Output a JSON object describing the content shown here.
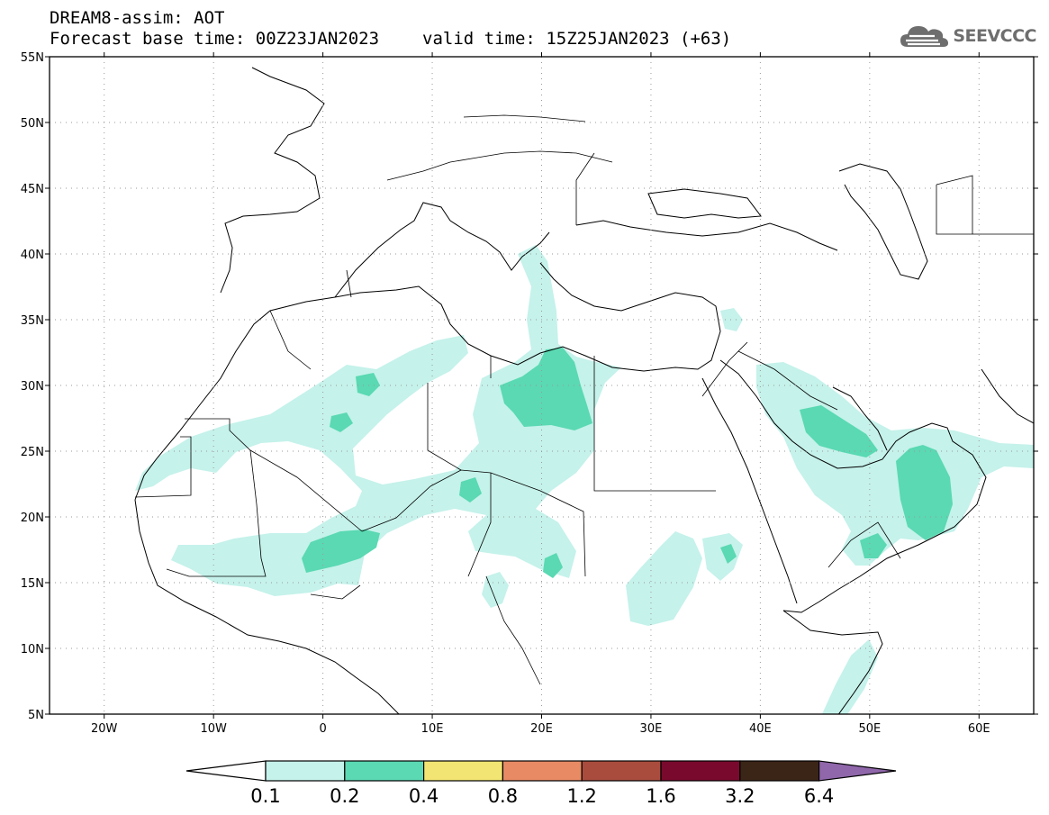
{
  "title": {
    "line1": "DREAM8-assim: AOT",
    "base_time": "Forecast base time: 00Z23JAN2023",
    "valid_time": "valid time: 15Z25JAN2023 (+63)"
  },
  "logo": {
    "name": "cloud-icon",
    "text": "SEEVCCC"
  },
  "map": {
    "lon_range": [
      -25,
      65
    ],
    "lat_range": [
      5,
      55
    ],
    "lat_labels": [
      "5N",
      "10N",
      "15N",
      "20N",
      "25N",
      "30N",
      "35N",
      "40N",
      "45N",
      "50N",
      "55N"
    ],
    "lon_labels": [
      "20W",
      "10W",
      "0",
      "10E",
      "20E",
      "30E",
      "40E",
      "50E",
      "60E"
    ]
  },
  "colorbar": {
    "levels": [
      "0.1",
      "0.2",
      "0.4",
      "0.8",
      "1.2",
      "1.6",
      "3.2",
      "6.4"
    ],
    "colors": [
      "#c5f2eb",
      "#5ad9b2",
      "#f2e573",
      "#e88a64",
      "#a94c3e",
      "#7a0a2d",
      "#3b2517",
      "#8f67aa"
    ],
    "under_color": "#ffffff"
  }
}
